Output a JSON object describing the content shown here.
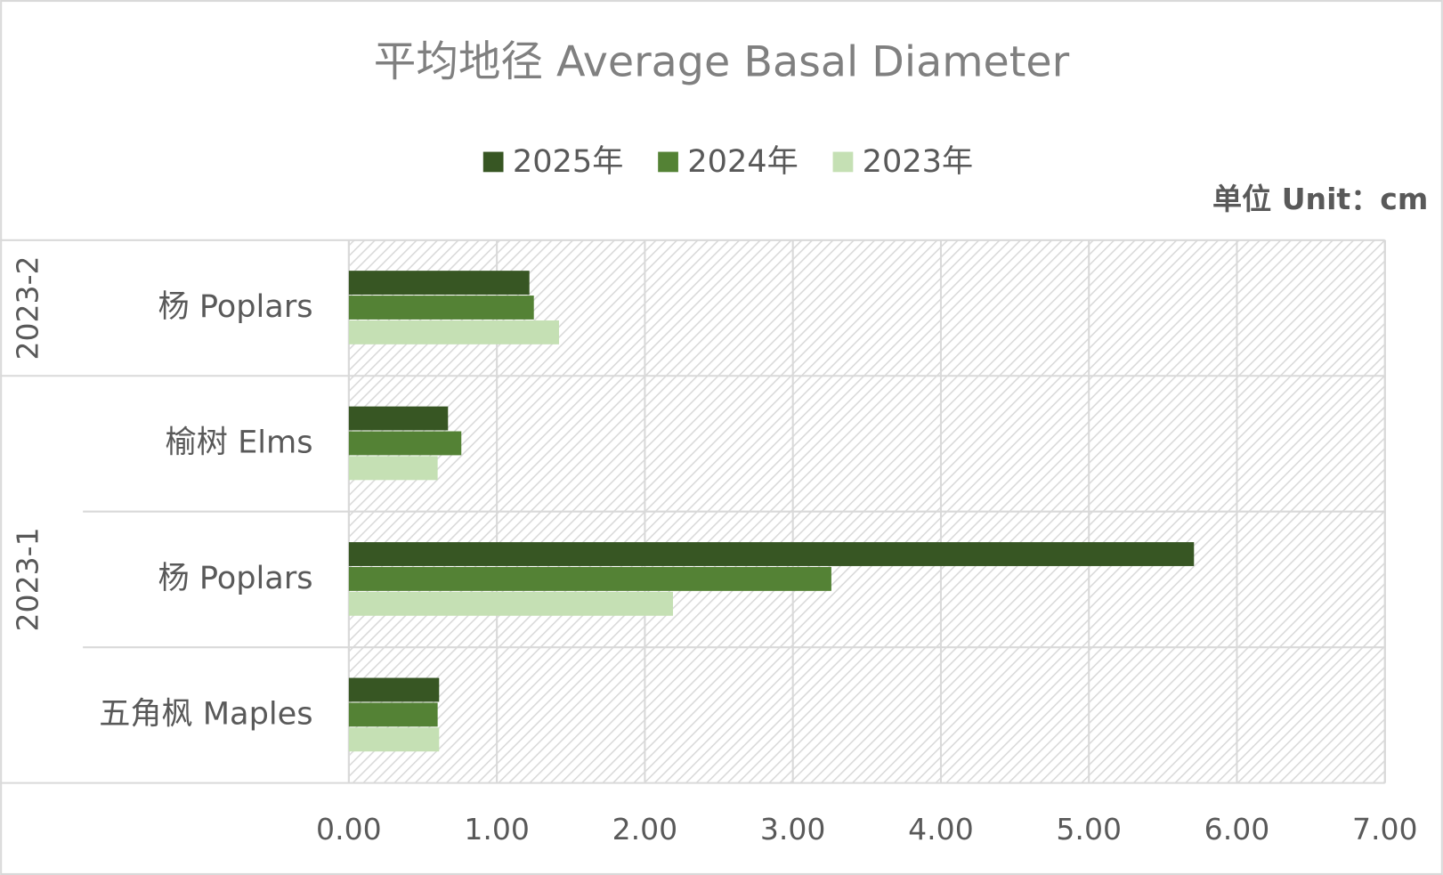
{
  "chart_data": {
    "type": "bar",
    "orientation": "horizontal",
    "title": "平均地径 Average Basal Diameter",
    "unit": "单位 Unit：cm",
    "groups": [
      {
        "name": "2023-2",
        "categories": [
          "杨 Poplars"
        ]
      },
      {
        "name": "2023-1",
        "categories": [
          "榆树 Elms",
          "杨 Poplars",
          "五角枫 Maples"
        ]
      }
    ],
    "series": [
      {
        "name": "2025年",
        "color": "#375623",
        "values": [
          1.22,
          0.67,
          5.71,
          0.61
        ]
      },
      {
        "name": "2024年",
        "color": "#548235",
        "values": [
          1.25,
          0.76,
          3.26,
          0.6
        ]
      },
      {
        "name": "2023年",
        "color": "#c5e0b4",
        "values": [
          1.42,
          0.6,
          2.19,
          0.61
        ]
      }
    ],
    "xlim": [
      0,
      7
    ],
    "xticks": [
      {
        "value": 0,
        "label": "0.00"
      },
      {
        "value": 1,
        "label": "1.00"
      },
      {
        "value": 2,
        "label": "2.00"
      },
      {
        "value": 3,
        "label": "3.00"
      },
      {
        "value": 4,
        "label": "4.00"
      },
      {
        "value": 5,
        "label": "5.00"
      },
      {
        "value": 6,
        "label": "6.00"
      },
      {
        "value": 7,
        "label": "7.00"
      }
    ],
    "grid": true,
    "legend": "top"
  }
}
